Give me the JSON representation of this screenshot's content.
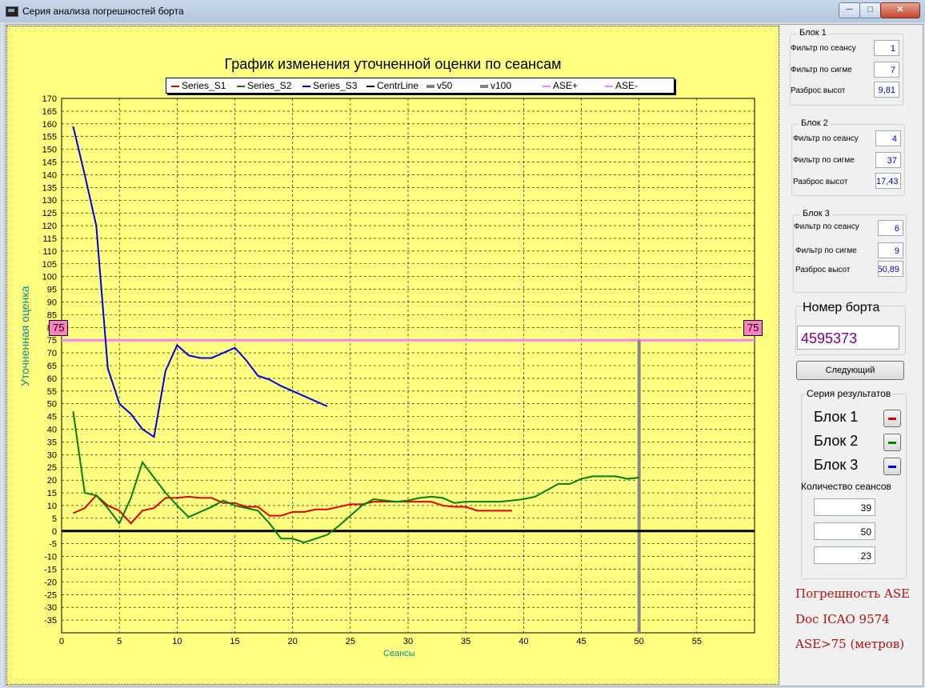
{
  "window": {
    "title": "Серия анализа погрешностей борта",
    "min_label": "─",
    "max_label": "□",
    "close_label": "✕"
  },
  "chart_title": "График изменения уточненной оценки по сеансам",
  "legend": [
    {
      "name": "Series_S1",
      "color": "#e00000"
    },
    {
      "name": "Series_S2",
      "color": "#008000"
    },
    {
      "name": "Series_S3",
      "color": "#0000e0"
    },
    {
      "name": "CentrLine",
      "color": "#000000"
    },
    {
      "name": "v50",
      "color": "#808080"
    },
    {
      "name": "v100",
      "color": "#808080"
    },
    {
      "name": "ASE+",
      "color": "#ff80ff"
    },
    {
      "name": "ASE-",
      "color": "#ff80ff"
    }
  ],
  "ase_tag_left": "75",
  "ase_tag_right": "75",
  "chart_data": {
    "type": "line",
    "title": "График изменения уточненной оценки по сеансам",
    "xlabel": "Сеансы",
    "ylabel": "Уточненная оценка",
    "xlim": [
      0,
      60
    ],
    "ylim": [
      -40,
      170
    ],
    "x_ticks": [
      0,
      5,
      10,
      15,
      20,
      25,
      30,
      35,
      40,
      45,
      50,
      55
    ],
    "y_ticks": [
      170,
      165,
      160,
      155,
      150,
      145,
      140,
      135,
      130,
      125,
      120,
      115,
      110,
      105,
      100,
      95,
      90,
      85,
      80,
      75,
      70,
      65,
      60,
      55,
      50,
      45,
      40,
      35,
      30,
      25,
      20,
      15,
      10,
      5,
      0,
      -5,
      -10,
      -15,
      -20,
      -25,
      -30,
      -35
    ],
    "grid": true,
    "series": [
      {
        "name": "Series_S1",
        "color": "#e00000",
        "x": [
          1,
          2,
          3,
          4,
          5,
          6,
          7,
          8,
          9,
          10,
          11,
          12,
          13,
          14,
          15,
          16,
          17,
          18,
          19,
          20,
          21,
          22,
          23,
          24,
          25,
          26,
          27,
          28,
          29,
          30,
          31,
          32,
          33,
          34,
          35,
          36,
          37,
          38,
          39
        ],
        "y": [
          7,
          9,
          14,
          10,
          8,
          3,
          8,
          9,
          13,
          13,
          13.5,
          13,
          13,
          11,
          11,
          9.5,
          9.5,
          6,
          6,
          7.5,
          7.5,
          8.5,
          8.5,
          9.5,
          10.5,
          10.5,
          11.5,
          11.5,
          11.5,
          11.5,
          11.5,
          11.5,
          10,
          9.5,
          9.5,
          8,
          8,
          8,
          8
        ]
      },
      {
        "name": "Series_S2",
        "color": "#008000",
        "x": [
          1,
          2,
          3,
          4,
          5,
          6,
          7,
          8,
          9,
          10,
          11,
          12,
          13,
          14,
          15,
          16,
          17,
          18,
          19,
          20,
          21,
          22,
          23,
          24,
          25,
          26,
          27,
          28,
          29,
          30,
          31,
          32,
          33,
          34,
          35,
          36,
          37,
          38,
          39,
          40,
          41,
          42,
          43,
          44,
          45,
          46,
          47,
          48,
          49,
          50
        ],
        "y": [
          47,
          15,
          14,
          9,
          3,
          13,
          27,
          21,
          15,
          10,
          5.5,
          7.5,
          9.5,
          12,
          10,
          9,
          8,
          3,
          -3,
          -3,
          -4.5,
          -3,
          -1.5,
          2,
          6,
          10,
          12.5,
          12,
          11.5,
          12,
          13,
          13.5,
          13,
          11,
          11.5,
          11.5,
          11.5,
          11.5,
          12,
          12.5,
          13.5,
          16,
          18.5,
          18.5,
          20.5,
          21.5,
          21.5,
          21.5,
          20.5,
          21
        ]
      },
      {
        "name": "Series_S3",
        "color": "#0000e0",
        "x": [
          1,
          2,
          3,
          4,
          5,
          6,
          7,
          8,
          9,
          10,
          11,
          12,
          13,
          14,
          15,
          16,
          17,
          18,
          19,
          20,
          21,
          22,
          23
        ],
        "y": [
          159,
          140,
          120,
          64,
          50,
          46,
          40,
          37,
          63,
          73,
          69,
          68,
          68,
          70,
          72,
          67,
          61,
          59.5,
          57,
          55,
          53,
          51,
          49
        ]
      }
    ],
    "ase_line": 75,
    "center_line": 0,
    "vertical_line_x": 50
  },
  "sidebar": {
    "block1": {
      "title": "Блок 1",
      "filter_session_label": "Фильтр по сеансу",
      "filter_session": "1",
      "filter_sigma_label": "Фильтр по сигме",
      "filter_sigma": "7",
      "spread_label": "Разброс высот",
      "spread": "9,81"
    },
    "block2": {
      "title": "Блок 2",
      "filter_session_label": "Фильтр по сеансу",
      "filter_session": "4",
      "filter_sigma_label": "Фильтр по сигме",
      "filter_sigma": "37",
      "spread_label": "Разброс высот",
      "spread": "17,43"
    },
    "block3": {
      "title": "Блок 3",
      "filter_session_label": "Фильтр по сеансу",
      "filter_session": "6",
      "filter_sigma_label": "Фильтр по сигме",
      "filter_sigma": "9",
      "spread_label": "Разброс высот",
      "spread": "50,89"
    },
    "board_title": "Номер борта",
    "board_number": "4595373",
    "next_button": "Следующий",
    "series_title": "Серия результатов",
    "series_rows": [
      {
        "label": "Блок 1",
        "color": "#e00000"
      },
      {
        "label": "Блок 2",
        "color": "#008000"
      },
      {
        "label": "Блок 3",
        "color": "#0000e0"
      }
    ],
    "count_label": "Количество сеансов",
    "counts": [
      "39",
      "50",
      "23"
    ],
    "notes": [
      "Погрешность ASE",
      "Doc ICAO 9574",
      "ASE>75 (метров)"
    ]
  }
}
